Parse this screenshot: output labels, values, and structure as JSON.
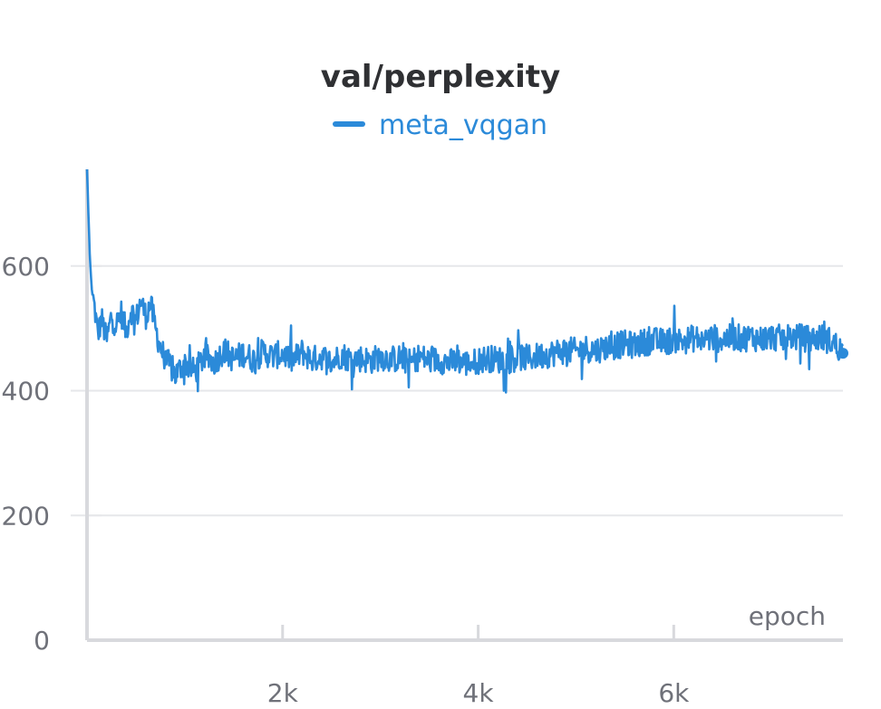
{
  "chart_data": {
    "type": "line",
    "title": "val/perplexity",
    "xlabel": "epoch",
    "ylabel": "",
    "xlim": [
      0,
      7730
    ],
    "ylim": [
      0,
      755
    ],
    "x_ticks": [
      {
        "value": 2000,
        "label": "2k"
      },
      {
        "value": 4000,
        "label": "4k"
      },
      {
        "value": 6000,
        "label": "6k"
      }
    ],
    "y_ticks": [
      {
        "value": 0,
        "label": "0"
      },
      {
        "value": 200,
        "label": "200"
      },
      {
        "value": 400,
        "label": "400"
      },
      {
        "value": 600,
        "label": "600"
      }
    ],
    "grid": true,
    "legend_position": "top-center",
    "series": [
      {
        "name": "meta_vqgan",
        "color": "#2b8ad9",
        "points": [
          [
            0,
            755
          ],
          [
            15,
            680
          ],
          [
            30,
            610
          ],
          [
            50,
            560
          ],
          [
            80,
            530
          ],
          [
            110,
            490
          ],
          [
            150,
            515
          ],
          [
            200,
            480
          ],
          [
            250,
            520
          ],
          [
            300,
            505
          ],
          [
            350,
            525
          ],
          [
            400,
            495
          ],
          [
            450,
            530
          ],
          [
            500,
            512
          ],
          [
            550,
            545
          ],
          [
            600,
            520
          ],
          [
            650,
            540
          ],
          [
            700,
            500
          ],
          [
            750,
            470
          ],
          [
            800,
            450
          ],
          [
            850,
            440
          ],
          [
            900,
            425
          ],
          [
            1000,
            445
          ],
          [
            1100,
            430
          ],
          [
            1200,
            455
          ],
          [
            1300,
            445
          ],
          [
            1400,
            465
          ],
          [
            1500,
            450
          ],
          [
            1600,
            460
          ],
          [
            1700,
            450
          ],
          [
            1800,
            462
          ],
          [
            1900,
            455
          ],
          [
            2000,
            460
          ],
          [
            2100,
            448
          ],
          [
            2200,
            462
          ],
          [
            2300,
            450
          ],
          [
            2400,
            455
          ],
          [
            2500,
            445
          ],
          [
            2600,
            458
          ],
          [
            2700,
            450
          ],
          [
            2800,
            452
          ],
          [
            2900,
            448
          ],
          [
            3000,
            455
          ],
          [
            3100,
            450
          ],
          [
            3200,
            452
          ],
          [
            3300,
            445
          ],
          [
            3400,
            455
          ],
          [
            3500,
            448
          ],
          [
            3600,
            450
          ],
          [
            3700,
            445
          ],
          [
            3800,
            448
          ],
          [
            3900,
            443
          ],
          [
            4000,
            448
          ],
          [
            4100,
            452
          ],
          [
            4200,
            450
          ],
          [
            4300,
            448
          ],
          [
            4400,
            455
          ],
          [
            4500,
            452
          ],
          [
            4600,
            455
          ],
          [
            4700,
            458
          ],
          [
            4800,
            462
          ],
          [
            4900,
            465
          ],
          [
            5000,
            463
          ],
          [
            5100,
            468
          ],
          [
            5200,
            465
          ],
          [
            5300,
            470
          ],
          [
            5400,
            472
          ],
          [
            5500,
            475
          ],
          [
            5600,
            473
          ],
          [
            5700,
            478
          ],
          [
            5800,
            480
          ],
          [
            5900,
            478
          ],
          [
            6000,
            482
          ],
          [
            6100,
            480
          ],
          [
            6200,
            484
          ],
          [
            6300,
            482
          ],
          [
            6400,
            485
          ],
          [
            6500,
            482
          ],
          [
            6600,
            486
          ],
          [
            6700,
            484
          ],
          [
            6800,
            486
          ],
          [
            6900,
            483
          ],
          [
            7000,
            486
          ],
          [
            7100,
            484
          ],
          [
            7200,
            487
          ],
          [
            7300,
            485
          ],
          [
            7400,
            483
          ],
          [
            7500,
            486
          ],
          [
            7600,
            480
          ],
          [
            7700,
            468
          ],
          [
            7730,
            460
          ]
        ],
        "noise_amplitude": 22,
        "last_point": {
          "x": 7730,
          "y": 460
        }
      }
    ]
  }
}
